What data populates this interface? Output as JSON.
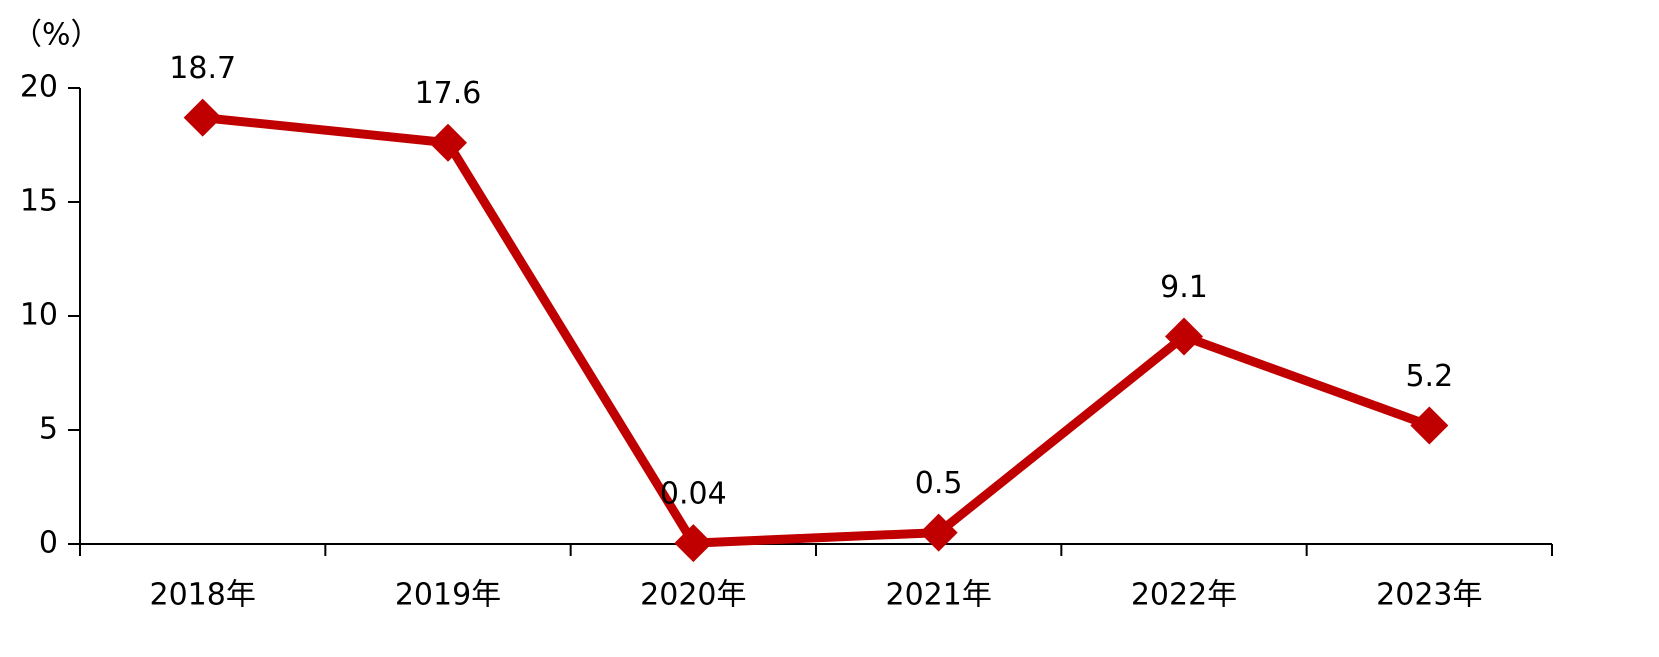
{
  "chart_data": {
    "type": "line",
    "y_label": "（%）",
    "categories": [
      "2018年",
      "2019年",
      "2020年",
      "2021年",
      "2022年",
      "2023年"
    ],
    "series": [
      {
        "color": "#c00000",
        "values": [
          18.7,
          17.6,
          0.04,
          0.5,
          9.1,
          5.2
        ]
      }
    ],
    "ylim": [
      0,
      20
    ],
    "yticks": [
      0,
      5,
      10,
      15,
      20
    ]
  }
}
